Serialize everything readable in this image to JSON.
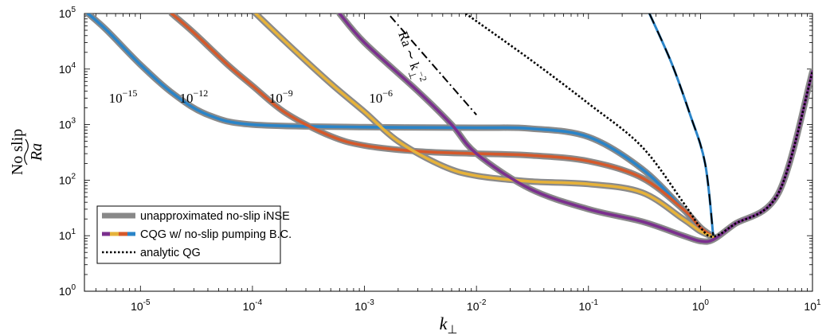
{
  "chart_data": {
    "type": "line",
    "xlabel": "k",
    "xlabel_sub": "⊥",
    "ylabel_top": "No slip",
    "ylabel_main": "Ra",
    "xscale": "log",
    "yscale": "log",
    "xlim_exp": [
      -5.5,
      1
    ],
    "ylim_exp": [
      0,
      5
    ],
    "xticks": [
      {
        "base": "10",
        "exp": "-5"
      },
      {
        "base": "10",
        "exp": "-4"
      },
      {
        "base": "10",
        "exp": "-3"
      },
      {
        "base": "10",
        "exp": "-2"
      },
      {
        "base": "10",
        "exp": "-1"
      },
      {
        "base": "10",
        "exp": "0"
      },
      {
        "base": "10",
        "exp": "1"
      }
    ],
    "yticks": [
      {
        "base": "10",
        "exp": "0"
      },
      {
        "base": "10",
        "exp": "1"
      },
      {
        "base": "10",
        "exp": "2"
      },
      {
        "base": "10",
        "exp": "3"
      },
      {
        "base": "10",
        "exp": "4"
      },
      {
        "base": "10",
        "exp": "5"
      }
    ],
    "grid": false,
    "legend_position": "lower-left",
    "legend": [
      {
        "label": "unapproximated no-slip iNSE",
        "style": "thick-gray"
      },
      {
        "label": "CQG w/ no-slip pumping B.C.",
        "style": "multicolor"
      },
      {
        "label": "analytic QG",
        "style": "dotted"
      }
    ],
    "series": [
      {
        "color": "#2a84c8",
        "x": [
          3.4e-06,
          5e-06,
          1e-05,
          2e-05,
          4e-05,
          0.0001,
          0.001,
          0.01,
          0.03,
          0.1,
          0.3,
          0.7,
          1.0,
          1.3
        ],
        "y": [
          100000.0,
          50000.0,
          12000.0,
          3500.0,
          1500.0,
          1000.0,
          900,
          880,
          850,
          600,
          160,
          30,
          14,
          9.6
        ]
      },
      {
        "color": "#d5592b",
        "x": [
          1.9e-05,
          3e-05,
          6e-05,
          0.0001,
          0.0002,
          0.0005,
          0.001,
          0.003,
          0.01,
          0.03,
          0.1,
          0.3,
          0.7,
          1.0,
          1.3
        ],
        "y": [
          100000.0,
          45000.0,
          12000.0,
          5000.0,
          1600.0,
          620,
          420,
          330,
          300,
          280,
          220,
          110,
          30,
          14,
          9.6
        ]
      },
      {
        "color": "#e6b23a",
        "x": [
          0.000107,
          0.0002,
          0.0005,
          0.001,
          0.002,
          0.005,
          0.01,
          0.03,
          0.1,
          0.3,
          0.7,
          1.0,
          1.3
        ],
        "y": [
          100000.0,
          30000.0,
          5500.0,
          1700.0,
          500,
          180,
          120,
          95,
          85,
          60,
          20,
          12,
          9.6
        ]
      },
      {
        "color": "#7b2f8e",
        "x": [
          0.0006,
          0.001,
          0.003,
          0.006,
          0.01,
          0.03,
          0.1,
          0.3,
          0.7,
          1.0,
          1.3,
          2,
          5,
          10
        ],
        "y": [
          100000.0,
          30000.0,
          4000.0,
          1000.0,
          300,
          70,
          30,
          18,
          10,
          8,
          8.5,
          16,
          60,
          9000
        ]
      }
    ],
    "steep_dashed": {
      "x": [
        0.35,
        0.55,
        0.8,
        1.1,
        1.3
      ],
      "y": [
        100000.0,
        13000.0,
        1600.0,
        200,
        10
      ]
    },
    "analytic_qg": {
      "x": [
        0.008,
        0.03,
        0.1,
        0.3,
        0.7,
        1.0,
        1.3,
        2,
        5,
        10
      ],
      "y": [
        100000.0,
        15000.0,
        2400.0,
        400,
        40,
        14,
        9.6,
        16,
        60,
        9000
      ]
    },
    "reference_slope": {
      "x": [
        0.0017,
        0.01
      ],
      "y": [
        90000.0,
        1500.0
      ]
    },
    "annotations": [
      {
        "base": "10",
        "exp": "−15",
        "x": 7e-06,
        "y": 2500
      },
      {
        "base": "10",
        "exp": "−12",
        "x": 3e-05,
        "y": 2500
      },
      {
        "base": "10",
        "exp": "−9",
        "x": 0.00018,
        "y": 2500
      },
      {
        "base": "10",
        "exp": "−6",
        "x": 0.0014,
        "y": 2500
      }
    ],
    "slope_label": {
      "base": "Ra ∼ k",
      "sub": "⊥",
      "exp": "−2"
    }
  }
}
